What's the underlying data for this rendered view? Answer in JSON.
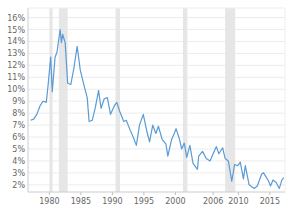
{
  "chart_data": {
    "type": "line",
    "x": [
      1977.0,
      1977.5,
      1978.0,
      1978.5,
      1979.0,
      1979.5,
      1979.8,
      1980.2,
      1980.45,
      1980.9,
      1981.2,
      1981.7,
      1981.9,
      1982.1,
      1982.5,
      1982.9,
      1983.4,
      1983.9,
      1984.4,
      1984.9,
      1985.5,
      1986.0,
      1986.3,
      1986.8,
      1987.3,
      1987.8,
      1988.2,
      1988.7,
      1989.2,
      1989.7,
      1990.3,
      1990.7,
      1991.2,
      1991.8,
      1992.2,
      1992.8,
      1993.3,
      1993.8,
      1994.3,
      1994.9,
      1995.5,
      1995.9,
      1996.4,
      1996.9,
      1997.3,
      1997.9,
      1998.5,
      1998.8,
      1999.4,
      1999.9,
      2000.1,
      2000.6,
      2001.0,
      2001.4,
      2001.8,
      2002.3,
      2002.8,
      2003.5,
      2003.7,
      2004.3,
      2004.9,
      2005.5,
      2005.9,
      2006.5,
      2006.9,
      2007.5,
      2007.9,
      2008.4,
      2008.95,
      2009.4,
      2009.9,
      2010.3,
      2010.8,
      2011.1,
      2011.7,
      2012.5,
      2013.0,
      2013.7,
      2014.0,
      2014.8,
      2015.1,
      2015.5,
      2016.0,
      2016.5,
      2016.9,
      2017.2
    ],
    "series": [
      {
        "color": "#5b9bd5",
        "values": [
          7.4,
          7.5,
          7.9,
          8.6,
          9.0,
          8.9,
          10.4,
          12.7,
          9.8,
          12.7,
          13.1,
          15.0,
          13.9,
          14.6,
          13.9,
          10.5,
          10.4,
          11.8,
          13.6,
          11.6,
          10.3,
          9.3,
          7.3,
          7.4,
          8.5,
          9.9,
          8.4,
          9.2,
          9.3,
          7.9,
          8.6,
          8.9,
          8.1,
          7.3,
          7.4,
          6.6,
          6.0,
          5.3,
          7.0,
          7.9,
          6.4,
          5.6,
          7.0,
          6.3,
          6.9,
          5.8,
          5.4,
          4.4,
          5.8,
          6.4,
          6.7,
          5.9,
          5.0,
          5.5,
          4.3,
          5.3,
          3.8,
          3.3,
          4.4,
          4.8,
          4.2,
          4.0,
          4.5,
          5.2,
          4.6,
          5.1,
          4.2,
          4.0,
          2.3,
          3.7,
          3.6,
          3.9,
          2.5,
          3.6,
          2.0,
          1.7,
          1.9,
          2.9,
          3.0,
          2.3,
          1.9,
          2.4,
          2.2,
          1.7,
          2.4,
          2.6
        ]
      }
    ],
    "recessions": [
      [
        1980.0,
        1980.5
      ],
      [
        1981.5,
        1982.9
      ],
      [
        1990.5,
        1991.2
      ],
      [
        2001.2,
        2001.9
      ],
      [
        2007.9,
        2009.5
      ]
    ],
    "xlim": [
      1976.6,
      2017.4
    ],
    "xticks": [
      1980,
      1985,
      1990,
      1995,
      2000,
      2006,
      2010,
      2015
    ],
    "ylim": [
      1.4,
      16.8
    ],
    "yticks": [
      {
        "value": 2,
        "label": "2%"
      },
      {
        "value": 3,
        "label": "3%"
      },
      {
        "value": 4,
        "label": "4%"
      },
      {
        "value": 5,
        "label": "5%"
      },
      {
        "value": 6,
        "label": "6%"
      },
      {
        "value": 7,
        "label": "7%"
      },
      {
        "value": 8,
        "label": "8%"
      },
      {
        "value": 9,
        "label": "9%"
      },
      {
        "value": 10,
        "label": "10%"
      },
      {
        "value": 11,
        "label": "11%"
      },
      {
        "value": 12,
        "label": "12%"
      },
      {
        "value": 13,
        "label": "13%"
      },
      {
        "value": 14,
        "label": "14%"
      },
      {
        "value": 15,
        "label": "15%"
      },
      {
        "value": 16,
        "label": "16%"
      }
    ],
    "grid": true
  }
}
